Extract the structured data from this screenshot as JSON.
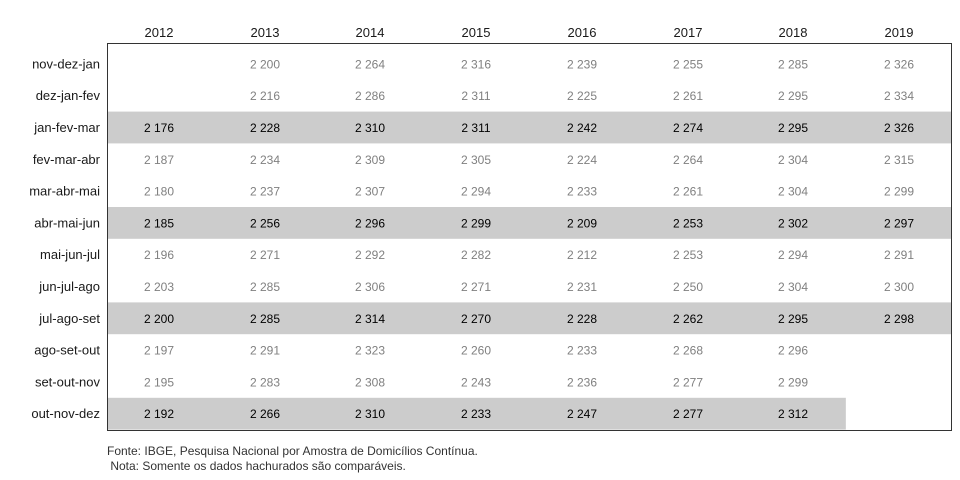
{
  "chart_data": {
    "type": "table",
    "title": "",
    "xlabel": "",
    "ylabel": "",
    "years": [
      "2012",
      "2013",
      "2014",
      "2015",
      "2016",
      "2017",
      "2018",
      "2019"
    ],
    "rows": [
      {
        "label": "nov-dez-jan",
        "highlight": false,
        "values": [
          null,
          "2 200",
          "2 264",
          "2 316",
          "2 239",
          "2 255",
          "2 285",
          "2 326"
        ]
      },
      {
        "label": "dez-jan-fev",
        "highlight": false,
        "values": [
          null,
          "2 216",
          "2 286",
          "2 311",
          "2 225",
          "2 261",
          "2 295",
          "2 334"
        ]
      },
      {
        "label": "jan-fev-mar",
        "highlight": true,
        "values": [
          "2 176",
          "2 228",
          "2 310",
          "2 311",
          "2 242",
          "2 274",
          "2 295",
          "2 326"
        ]
      },
      {
        "label": "fev-mar-abr",
        "highlight": false,
        "values": [
          "2 187",
          "2 234",
          "2 309",
          "2 305",
          "2 224",
          "2 264",
          "2 304",
          "2 315"
        ]
      },
      {
        "label": "mar-abr-mai",
        "highlight": false,
        "values": [
          "2 180",
          "2 237",
          "2 307",
          "2 294",
          "2 233",
          "2 261",
          "2 304",
          "2 299"
        ]
      },
      {
        "label": "abr-mai-jun",
        "highlight": true,
        "values": [
          "2 185",
          "2 256",
          "2 296",
          "2 299",
          "2 209",
          "2 253",
          "2 302",
          "2 297"
        ]
      },
      {
        "label": "mai-jun-jul",
        "highlight": false,
        "values": [
          "2 196",
          "2 271",
          "2 292",
          "2 282",
          "2 212",
          "2 253",
          "2 294",
          "2 291"
        ]
      },
      {
        "label": "jun-jul-ago",
        "highlight": false,
        "values": [
          "2 203",
          "2 285",
          "2 306",
          "2 271",
          "2 231",
          "2 250",
          "2 304",
          "2 300"
        ]
      },
      {
        "label": "jul-ago-set",
        "highlight": true,
        "values": [
          "2 200",
          "2 285",
          "2 314",
          "2 270",
          "2 228",
          "2 262",
          "2 295",
          "2 298"
        ]
      },
      {
        "label": "ago-set-out",
        "highlight": false,
        "values": [
          "2 197",
          "2 291",
          "2 323",
          "2 260",
          "2 233",
          "2 268",
          "2 296",
          null
        ]
      },
      {
        "label": "set-out-nov",
        "highlight": false,
        "values": [
          "2 195",
          "2 283",
          "2 308",
          "2 243",
          "2 236",
          "2 277",
          "2 299",
          null
        ]
      },
      {
        "label": "out-nov-dez",
        "highlight": true,
        "values": [
          "2 192",
          "2 266",
          "2 310",
          "2 233",
          "2 247",
          "2 277",
          "2 312",
          null
        ]
      }
    ],
    "colors": {
      "highlight_band": "#cccccc",
      "highlight_text": "#000000",
      "normal_text": "#808080",
      "label_text": "#1a1a1a",
      "border": "#333333"
    }
  },
  "footnotes": {
    "source": "Fonte: IBGE, Pesquisa Nacional por Amostra de Domicílios Contínua.",
    "note": " Nota: Somente os dados hachurados são comparáveis."
  }
}
